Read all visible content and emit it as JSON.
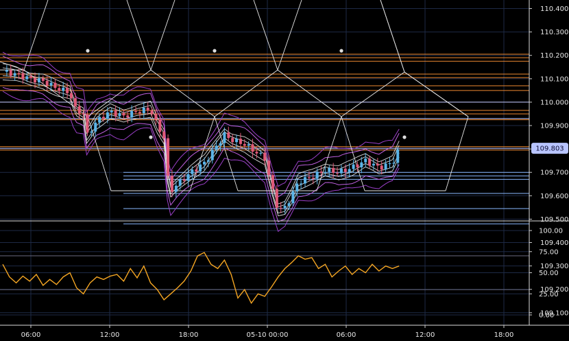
{
  "chart_data": [
    {
      "type": "candlestick",
      "title": "",
      "ylim": [
        109.0,
        110.48
      ],
      "y_ticks": [
        110.4,
        110.3,
        110.2,
        110.1,
        110.0,
        109.9,
        109.8,
        109.7,
        109.6,
        109.5,
        109.4,
        109.3,
        109.2,
        109.1
      ],
      "x_ticks": [
        "06:00",
        "12:00",
        "18:00",
        "05-10 00:00",
        "06:00",
        "12:00",
        "18:00"
      ],
      "current_price": 109.803,
      "grid": true,
      "price_path": [
        [
          0.0,
          110.13
        ],
        [
          1.0,
          110.12
        ],
        [
          2.0,
          110.1
        ],
        [
          3.0,
          110.09
        ],
        [
          4.0,
          110.06
        ],
        [
          5.0,
          110.04
        ],
        [
          5.4,
          109.97
        ],
        [
          6.0,
          109.95
        ],
        [
          6.2,
          109.85
        ],
        [
          7.0,
          109.92
        ],
        [
          8.0,
          109.96
        ],
        [
          9.0,
          109.94
        ],
        [
          10.0,
          109.96
        ],
        [
          11.0,
          109.97
        ],
        [
          11.5,
          109.9
        ],
        [
          12.0,
          109.85
        ],
        [
          12.2,
          109.7
        ],
        [
          12.5,
          109.62
        ],
        [
          13.0,
          109.65
        ],
        [
          14.0,
          109.7
        ],
        [
          15.0,
          109.74
        ],
        [
          16.0,
          109.82
        ],
        [
          16.5,
          109.86
        ],
        [
          17.0,
          109.84
        ],
        [
          18.0,
          109.82
        ],
        [
          19.0,
          109.78
        ],
        [
          19.5,
          109.76
        ],
        [
          20.0,
          109.64
        ],
        [
          20.5,
          109.54
        ],
        [
          21.0,
          109.55
        ],
        [
          21.5,
          109.6
        ],
        [
          22.0,
          109.66
        ],
        [
          23.0,
          109.68
        ],
        [
          24.0,
          109.71
        ],
        [
          25.0,
          109.7
        ],
        [
          26.0,
          109.72
        ],
        [
          27.0,
          109.75
        ],
        [
          28.0,
          109.72
        ],
        [
          29.0,
          109.74
        ],
        [
          29.5,
          109.8
        ]
      ],
      "horizontal_levels": {
        "orange": [
          110.205,
          110.19,
          110.175,
          110.12,
          110.105,
          110.07,
          110.05,
          109.965,
          109.95,
          109.925,
          109.81,
          109.795
        ],
        "light_blue": [
          109.7,
          109.685,
          109.67,
          109.61,
          109.545,
          109.48
        ],
        "lavender": [
          110.0,
          109.93,
          109.803
        ]
      },
      "colors": {
        "background": "#000000",
        "bull_candle": "#5ab4e8",
        "bear_candle": "#e05a78",
        "gann_lines": "#e8e8e8",
        "bands": "#9b3fc9",
        "orange_levels": "#f08a30",
        "blue_levels": "#8ab8ff",
        "oscillator": "#f5a623",
        "price_badge": "#b8c4ff"
      }
    },
    {
      "type": "line",
      "title": "",
      "ylim": [
        -5,
        108
      ],
      "y_ticks": [
        100.0,
        75.0,
        50.0,
        25.0,
        0.0
      ],
      "y_tick_labels": [
        "100.00",
        "75.00",
        "50.00",
        "25.00",
        "0.00"
      ],
      "reference_lines": [
        70,
        30
      ],
      "x": [
        0,
        0.5,
        1,
        1.5,
        2,
        2.5,
        3,
        3.5,
        4,
        4.5,
        5,
        5.5,
        6,
        6.5,
        7,
        7.5,
        8,
        8.5,
        9,
        9.5,
        10,
        10.5,
        11,
        11.5,
        12,
        12.5,
        13,
        13.5,
        14,
        14.5,
        15,
        15.5,
        16,
        16.5,
        17,
        17.5,
        18,
        18.5,
        19,
        19.5,
        20,
        20.5,
        21,
        21.5,
        22,
        22.5,
        23,
        23.5,
        24,
        24.5,
        25,
        25.5,
        26,
        26.5,
        27,
        27.5,
        28,
        28.5,
        29,
        29.5
      ],
      "values": [
        60,
        45,
        38,
        46,
        40,
        48,
        35,
        42,
        36,
        45,
        50,
        32,
        25,
        38,
        45,
        42,
        46,
        48,
        40,
        55,
        44,
        58,
        38,
        30,
        18,
        25,
        32,
        40,
        52,
        70,
        74,
        60,
        55,
        65,
        48,
        20,
        30,
        14,
        25,
        22,
        33,
        45,
        55,
        62,
        70,
        66,
        68,
        55,
        60,
        45,
        52,
        58,
        48,
        55,
        50,
        60,
        52,
        58,
        55,
        58
      ],
      "colors": {
        "line": "#f5a623",
        "grid": "#1e2a46"
      }
    }
  ]
}
